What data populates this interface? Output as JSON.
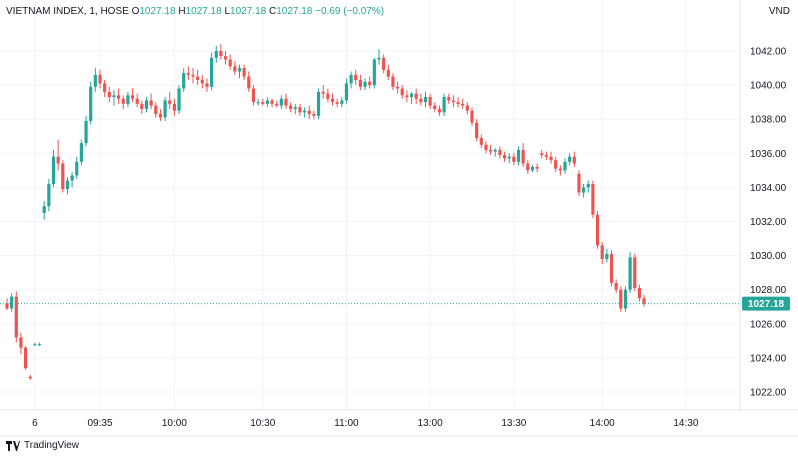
{
  "header": {
    "symbol": "VIETNAM INDEX, 1, HOSE",
    "o_label": "O",
    "o_value": "1027.18",
    "h_label": "H",
    "h_value": "1027.18",
    "l_label": "L",
    "l_value": "1027.18",
    "c_label": "C",
    "c_value": "1027.18",
    "change": "−0.69 (−0.07%)"
  },
  "currency": "VND",
  "footer": {
    "brand": "TradingView"
  },
  "colors": {
    "up": "#26a69a",
    "down": "#ef5350",
    "grid": "#f0f3fa",
    "axis_text": "#131722",
    "last_price_bg": "#26a69a"
  },
  "chart_data": {
    "type": "candlestick",
    "title": "VIETNAM INDEX, 1, HOSE",
    "ylabel": "",
    "xlabel": "",
    "ylim": [
      1020.8,
      1044.0
    ],
    "y_ticks": [
      "1022.00",
      "1024.00",
      "1026.00",
      "1028.00",
      "1030.00",
      "1032.00",
      "1034.00",
      "1036.00",
      "1038.00",
      "1040.00",
      "1042.00"
    ],
    "x_ticks": [
      {
        "label": "6",
        "i": 6
      },
      {
        "label": "09:35",
        "i": 20
      },
      {
        "label": "10:00",
        "i": 36
      },
      {
        "label": "10:30",
        "i": 55
      },
      {
        "label": "11:00",
        "i": 73
      },
      {
        "label": "13:00",
        "i": 91
      },
      {
        "label": "13:30",
        "i": 109
      },
      {
        "label": "14:00",
        "i": 128
      },
      {
        "label": "14:30",
        "i": 146
      }
    ],
    "last_price": "1027.18",
    "last_price_value": 1027.18,
    "candles": [
      [
        1027.2,
        1027.5,
        1026.8,
        1026.9
      ],
      [
        1026.9,
        1027.8,
        1026.7,
        1027.6
      ],
      [
        1027.6,
        1027.9,
        1024.9,
        1025.2
      ],
      [
        1025.2,
        1025.5,
        1024.2,
        1024.6
      ],
      [
        1024.6,
        1024.7,
        1023.3,
        1023.4
      ],
      [
        1022.9,
        1023.0,
        1022.7,
        1022.8
      ],
      [
        1024.8,
        1024.9,
        1024.7,
        1024.8
      ],
      [
        1024.8,
        1024.9,
        1024.7,
        1024.8
      ],
      [
        1032.5,
        1033.2,
        1032.1,
        1032.9
      ],
      [
        1032.9,
        1034.5,
        1032.6,
        1034.2
      ],
      [
        1034.2,
        1036.2,
        1034.0,
        1035.8
      ],
      [
        1035.8,
        1036.8,
        1035.0,
        1035.4
      ],
      [
        1035.4,
        1035.6,
        1033.7,
        1033.9
      ],
      [
        1033.9,
        1034.6,
        1033.6,
        1034.4
      ],
      [
        1034.4,
        1034.9,
        1034.0,
        1034.7
      ],
      [
        1034.7,
        1035.8,
        1034.5,
        1035.5
      ],
      [
        1035.5,
        1036.8,
        1035.3,
        1036.6
      ],
      [
        1036.6,
        1038.2,
        1036.4,
        1037.9
      ],
      [
        1037.9,
        1040.2,
        1037.7,
        1039.9
      ],
      [
        1039.9,
        1041.0,
        1039.6,
        1040.6
      ],
      [
        1040.6,
        1040.9,
        1039.8,
        1040.1
      ],
      [
        1040.1,
        1040.3,
        1039.3,
        1039.6
      ],
      [
        1039.6,
        1039.9,
        1039.0,
        1039.3
      ],
      [
        1039.3,
        1039.7,
        1038.8,
        1039.4
      ],
      [
        1039.4,
        1039.8,
        1038.9,
        1039.2
      ],
      [
        1039.2,
        1039.4,
        1038.6,
        1038.9
      ],
      [
        1038.9,
        1039.6,
        1038.7,
        1039.4
      ],
      [
        1039.4,
        1039.8,
        1039.0,
        1039.2
      ],
      [
        1039.2,
        1039.5,
        1038.7,
        1038.9
      ],
      [
        1038.9,
        1039.1,
        1038.3,
        1038.6
      ],
      [
        1038.6,
        1039.3,
        1038.4,
        1039.1
      ],
      [
        1039.1,
        1039.5,
        1038.6,
        1038.8
      ],
      [
        1038.8,
        1039.0,
        1038.1,
        1038.3
      ],
      [
        1038.3,
        1038.6,
        1037.9,
        1038.1
      ],
      [
        1038.1,
        1039.3,
        1037.9,
        1039.1
      ],
      [
        1039.1,
        1039.6,
        1038.6,
        1038.9
      ],
      [
        1038.9,
        1039.2,
        1038.2,
        1038.5
      ],
      [
        1038.5,
        1040.0,
        1038.3,
        1039.8
      ],
      [
        1039.8,
        1041.0,
        1039.6,
        1040.7
      ],
      [
        1040.7,
        1041.1,
        1040.3,
        1040.6
      ],
      [
        1040.6,
        1041.0,
        1040.1,
        1040.5
      ],
      [
        1040.5,
        1040.9,
        1040.0,
        1040.3
      ],
      [
        1040.3,
        1040.6,
        1039.8,
        1040.1
      ],
      [
        1040.1,
        1040.4,
        1039.6,
        1039.9
      ],
      [
        1039.9,
        1041.9,
        1039.7,
        1041.6
      ],
      [
        1041.6,
        1042.3,
        1041.3,
        1042.0
      ],
      [
        1042.0,
        1042.4,
        1041.5,
        1041.7
      ],
      [
        1041.7,
        1042.0,
        1041.2,
        1041.5
      ],
      [
        1041.5,
        1041.8,
        1040.9,
        1041.1
      ],
      [
        1041.1,
        1041.4,
        1040.6,
        1040.8
      ],
      [
        1040.8,
        1041.2,
        1040.4,
        1041.0
      ],
      [
        1041.0,
        1041.2,
        1040.3,
        1040.5
      ],
      [
        1040.5,
        1040.8,
        1039.6,
        1039.8
      ],
      [
        1039.8,
        1040.0,
        1038.8,
        1039.0
      ],
      [
        1039.0,
        1039.2,
        1038.8,
        1039.0
      ],
      [
        1039.0,
        1039.2,
        1038.8,
        1038.9
      ],
      [
        1038.9,
        1039.3,
        1038.7,
        1039.1
      ],
      [
        1039.1,
        1039.2,
        1038.7,
        1038.9
      ],
      [
        1038.9,
        1039.1,
        1038.7,
        1038.8
      ],
      [
        1038.8,
        1039.4,
        1038.6,
        1039.2
      ],
      [
        1039.2,
        1039.5,
        1038.6,
        1038.8
      ],
      [
        1038.8,
        1039.0,
        1038.4,
        1038.6
      ],
      [
        1038.6,
        1038.9,
        1038.3,
        1038.7
      ],
      [
        1038.7,
        1038.9,
        1038.2,
        1038.4
      ],
      [
        1038.4,
        1038.7,
        1038.1,
        1038.5
      ],
      [
        1038.5,
        1038.8,
        1038.0,
        1038.3
      ],
      [
        1038.3,
        1038.5,
        1038.0,
        1038.2
      ],
      [
        1038.2,
        1039.8,
        1038.0,
        1039.6
      ],
      [
        1039.6,
        1040.0,
        1039.2,
        1039.5
      ],
      [
        1039.5,
        1039.8,
        1039.0,
        1039.2
      ],
      [
        1039.2,
        1039.5,
        1038.8,
        1039.0
      ],
      [
        1039.0,
        1039.2,
        1038.7,
        1038.9
      ],
      [
        1038.9,
        1039.3,
        1038.7,
        1039.1
      ],
      [
        1039.1,
        1040.4,
        1038.9,
        1040.1
      ],
      [
        1040.1,
        1040.8,
        1039.8,
        1040.6
      ],
      [
        1040.6,
        1040.9,
        1040.0,
        1040.3
      ],
      [
        1040.3,
        1040.6,
        1039.7,
        1039.9
      ],
      [
        1039.9,
        1040.4,
        1039.7,
        1040.2
      ],
      [
        1040.2,
        1040.5,
        1039.8,
        1040.0
      ],
      [
        1040.0,
        1041.6,
        1039.8,
        1041.5
      ],
      [
        1041.5,
        1042.1,
        1041.2,
        1041.6
      ],
      [
        1041.6,
        1041.8,
        1040.7,
        1040.9
      ],
      [
        1040.9,
        1041.2,
        1040.3,
        1040.5
      ],
      [
        1040.5,
        1040.7,
        1039.7,
        1039.9
      ],
      [
        1039.9,
        1040.2,
        1039.5,
        1039.8
      ],
      [
        1039.8,
        1040.0,
        1039.2,
        1039.4
      ],
      [
        1039.4,
        1039.7,
        1039.0,
        1039.3
      ],
      [
        1039.3,
        1039.6,
        1038.9,
        1039.5
      ],
      [
        1039.5,
        1039.8,
        1038.9,
        1039.2
      ],
      [
        1039.2,
        1039.5,
        1038.8,
        1039.0
      ],
      [
        1039.0,
        1039.6,
        1038.7,
        1039.3
      ],
      [
        1039.3,
        1039.5,
        1038.6,
        1038.8
      ],
      [
        1038.8,
        1039.0,
        1038.4,
        1038.6
      ],
      [
        1038.6,
        1038.8,
        1038.2,
        1038.4
      ],
      [
        1038.4,
        1039.5,
        1038.2,
        1039.3
      ],
      [
        1039.3,
        1039.5,
        1038.9,
        1039.1
      ],
      [
        1039.1,
        1039.4,
        1038.7,
        1039.0
      ],
      [
        1039.0,
        1039.3,
        1038.7,
        1038.9
      ],
      [
        1038.9,
        1039.2,
        1038.6,
        1038.8
      ],
      [
        1038.8,
        1039.0,
        1038.3,
        1038.5
      ],
      [
        1038.5,
        1038.7,
        1037.6,
        1037.8
      ],
      [
        1037.8,
        1038.0,
        1036.7,
        1036.9
      ],
      [
        1036.9,
        1037.1,
        1036.3,
        1036.5
      ],
      [
        1036.5,
        1036.7,
        1036.0,
        1036.2
      ],
      [
        1036.2,
        1036.5,
        1035.9,
        1036.1
      ],
      [
        1036.1,
        1036.3,
        1035.8,
        1036.2
      ],
      [
        1036.2,
        1036.4,
        1035.7,
        1035.9
      ],
      [
        1035.9,
        1036.1,
        1035.5,
        1035.7
      ],
      [
        1035.7,
        1036.0,
        1035.4,
        1035.8
      ],
      [
        1035.8,
        1036.0,
        1035.3,
        1035.5
      ],
      [
        1035.5,
        1036.4,
        1035.3,
        1036.2
      ],
      [
        1036.2,
        1036.6,
        1035.2,
        1035.4
      ],
      [
        1035.4,
        1035.6,
        1034.8,
        1035.0
      ],
      [
        1035.0,
        1035.3,
        1034.9,
        1035.2
      ],
      [
        1035.2,
        1035.4,
        1034.9,
        1035.1
      ],
      [
        1036.0,
        1036.2,
        1035.7,
        1035.9
      ],
      [
        1035.9,
        1036.1,
        1035.6,
        1035.8
      ],
      [
        1035.8,
        1036.1,
        1035.4,
        1035.6
      ],
      [
        1035.6,
        1035.8,
        1034.9,
        1035.1
      ],
      [
        1035.1,
        1035.3,
        1034.7,
        1035.0
      ],
      [
        1035.0,
        1035.7,
        1034.8,
        1035.5
      ],
      [
        1035.5,
        1036.0,
        1035.3,
        1035.8
      ],
      [
        1035.8,
        1036.1,
        1035.2,
        1035.4
      ],
      [
        1034.8,
        1035.0,
        1033.5,
        1033.7
      ],
      [
        1033.7,
        1034.2,
        1033.4,
        1034.0
      ],
      [
        1034.0,
        1034.4,
        1033.7,
        1034.2
      ],
      [
        1034.2,
        1034.4,
        1032.2,
        1032.4
      ],
      [
        1032.4,
        1032.6,
        1030.4,
        1030.6
      ],
      [
        1030.6,
        1030.8,
        1029.5,
        1029.8
      ],
      [
        1029.8,
        1030.4,
        1029.6,
        1030.1
      ],
      [
        1030.1,
        1030.3,
        1028.2,
        1028.4
      ],
      [
        1028.4,
        1028.6,
        1027.8,
        1028.0
      ],
      [
        1028.0,
        1028.2,
        1026.7,
        1026.9
      ],
      [
        1026.9,
        1028.2,
        1026.7,
        1028.0
      ],
      [
        1028.0,
        1030.2,
        1027.8,
        1029.9
      ],
      [
        1029.9,
        1030.1,
        1027.9,
        1028.1
      ],
      [
        1028.1,
        1028.3,
        1027.3,
        1027.5
      ],
      [
        1027.5,
        1027.7,
        1027.0,
        1027.18
      ]
    ]
  }
}
